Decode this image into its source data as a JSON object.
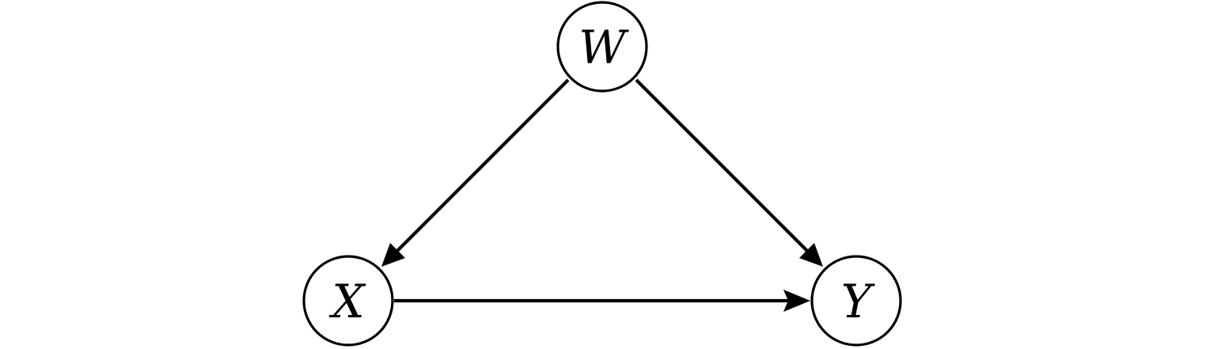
{
  "diagram": {
    "type": "directed-graph",
    "colors": {
      "stroke": "#000000",
      "background": "#ffffff"
    },
    "nodes": [
      {
        "id": "W",
        "label": "W"
      },
      {
        "id": "X",
        "label": "X"
      },
      {
        "id": "Y",
        "label": "Y"
      }
    ],
    "edges": [
      {
        "from": "W",
        "to": "X"
      },
      {
        "from": "W",
        "to": "Y"
      },
      {
        "from": "X",
        "to": "Y"
      }
    ]
  }
}
